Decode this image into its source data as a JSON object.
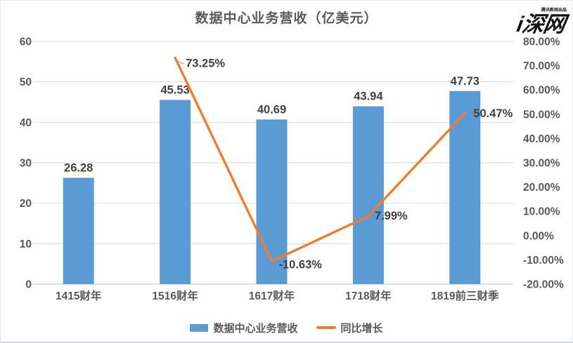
{
  "title": "数据中心业务营收（亿美元）",
  "logo": {
    "text": "i深网",
    "tagline": "腾讯新闻出品"
  },
  "colors": {
    "bar": "#5B9BD5",
    "line": "#ED7D31",
    "grid": "#d9d9d9",
    "axis_line": "#bfbfbf",
    "tick_text": "#595959",
    "data_label": "#404040",
    "leader": "#a6a6a6",
    "title_text": "#595959"
  },
  "chart_data": {
    "type": "bar",
    "subtype": "bar+line combo, dual axis",
    "title": "数据中心业务营收（亿美元）",
    "categories": [
      "1415财年",
      "1516财年",
      "1617财年",
      "1718财年",
      "1819前三财季"
    ],
    "series": [
      {
        "name": "数据中心业务营收",
        "type": "bar",
        "axis": "left",
        "values": [
          26.28,
          45.53,
          40.69,
          43.94,
          47.73
        ],
        "labels": [
          "26.28",
          "45.53",
          "40.69",
          "43.94",
          "47.73"
        ]
      },
      {
        "name": "同比增长",
        "type": "line",
        "axis": "right",
        "values": [
          null,
          73.25,
          -10.63,
          7.99,
          50.47
        ],
        "labels": [
          null,
          "73.25%",
          "-10.63%",
          "7.99%",
          "50.47%"
        ]
      }
    ],
    "left_axis": {
      "min": 0,
      "max": 60,
      "step": 10,
      "ticks": [
        "0",
        "10",
        "20",
        "30",
        "40",
        "50",
        "60"
      ]
    },
    "right_axis": {
      "min": -20,
      "max": 80,
      "step": 10,
      "ticks": [
        "80.00%",
        "70.00%",
        "60.00%",
        "50.00%",
        "40.00%",
        "30.00%",
        "20.00%",
        "10.00%",
        "0.00%",
        "-10.00%",
        "-20.00%"
      ]
    },
    "grid": true,
    "legend_position": "bottom"
  },
  "legend": {
    "items": [
      {
        "label": "数据中心业务营收",
        "type": "bar",
        "color": "#5B9BD5"
      },
      {
        "label": "同比增长",
        "type": "line",
        "color": "#ED7D31"
      }
    ]
  }
}
